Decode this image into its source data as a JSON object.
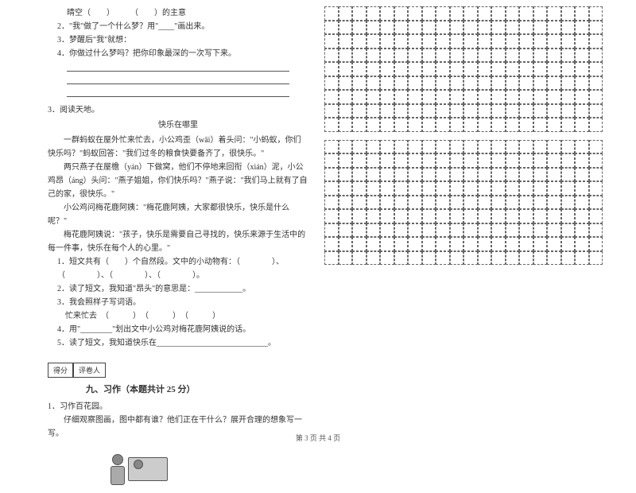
{
  "leftColumn": {
    "topLines": [
      {
        "text": "晴空（　　）　　　（　　）的主意",
        "cls": "indent-1"
      },
      {
        "text": "2．\"我\"做了一个什么梦？用\"____\"画出来。",
        "cls": "indent-2"
      },
      {
        "text": "3．梦醒后\"我\"就想：",
        "cls": "indent-2"
      },
      {
        "text": "4．你做过什么梦吗？把你印象最深的一次写下来。",
        "cls": "indent-2"
      }
    ],
    "q3": {
      "num": "3．阅读天地。",
      "title": "快乐在哪里",
      "paragraphs": [
        "　　一群蚂蚁在屋外忙来忙去，小公鸡歪（wāi）着头问：\"小蚂蚁，你们快乐吗？\"蚂蚁回答：\"我们过冬的粮食快要备齐了，很快乐。\"",
        "　　两只燕子在屋檐（yán）下做窝，他们不停地来回衔（xián）泥，小公鸡昂（áng）头问：\"燕子姐姐，你们快乐吗？\"燕子说：\"我们马上就有了自己的家，很快乐。\"",
        "　　小公鸡问梅花鹿阿姨：\"梅花鹿阿姨，大家都很快乐，快乐是什么呢？\"",
        "　　梅花鹿阿姨说：\"孩子，快乐是需要自己寻找的，快乐来源于生活中的每一件事，快乐在每个人的心里。\""
      ],
      "subQuestions": [
        "1．短文共有（　　）个自然段。文中的小动物有：（　　　　）、（　　　　）、（　　　　）、（　　　　）。",
        "2．读了短文，我知道\"昂头\"的意思是：____________。",
        "3．我会照样子写词语。",
        "　忙来忙去　（　　　）　（　　　）　（　　　）",
        "4．用\"________\"划出文中小公鸡对梅花鹿阿姨说的话。",
        "5．读了短文，我知道快乐在____________________________。"
      ]
    },
    "scoreBox": {
      "left": "得分",
      "right": "评卷人"
    },
    "section9": {
      "title": "九、习作（本题共计 25 分）",
      "q1": "1．习作百花园。",
      "q1sub": "　　仔细观察图画，图中都有谁？他们正在干什么？展开合理的想象写一写。"
    }
  },
  "gridRows1": 9,
  "gridRows2": 9,
  "gridCols": 20,
  "footer": "第 3 页  共 4 页"
}
